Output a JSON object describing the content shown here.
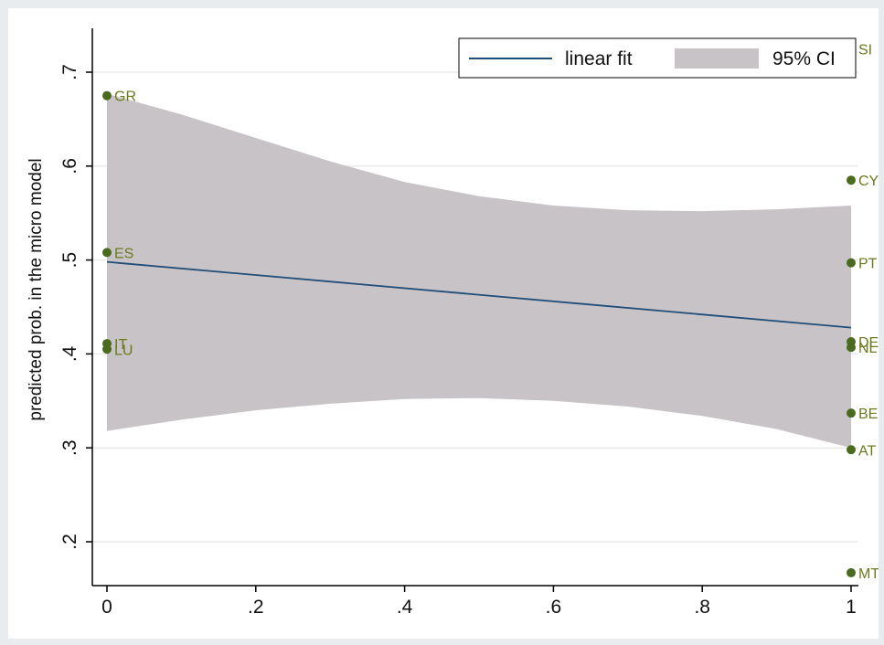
{
  "chart_data": {
    "type": "scatter",
    "title": "",
    "xlabel": "",
    "ylabel": "predicted prob. in the micro model",
    "xlim": [
      0,
      1
    ],
    "ylim": [
      0.2,
      0.7
    ],
    "x_ticks": [
      {
        "value": 0,
        "label": "0"
      },
      {
        "value": 0.2,
        "label": ".2"
      },
      {
        "value": 0.4,
        "label": ".4"
      },
      {
        "value": 0.6,
        "label": ".6"
      },
      {
        "value": 0.8,
        "label": ".8"
      },
      {
        "value": 1,
        "label": "1"
      }
    ],
    "y_ticks": [
      {
        "value": 0.2,
        "label": ".2"
      },
      {
        "value": 0.3,
        "label": ".3"
      },
      {
        "value": 0.4,
        "label": ".4"
      },
      {
        "value": 0.5,
        "label": ".5"
      },
      {
        "value": 0.6,
        "label": ".6"
      },
      {
        "value": 0.7,
        "label": ".7"
      }
    ],
    "grid": "horizontal",
    "points": [
      {
        "label": "GR",
        "x": 0,
        "y": 0.675
      },
      {
        "label": "ES",
        "x": 0,
        "y": 0.508
      },
      {
        "label": "IT",
        "x": 0,
        "y": 0.411
      },
      {
        "label": "LU",
        "x": 0,
        "y": 0.405
      },
      {
        "label": "SI",
        "x": 1,
        "y": 0.725
      },
      {
        "label": "CY",
        "x": 1,
        "y": 0.585
      },
      {
        "label": "PT",
        "x": 1,
        "y": 0.497
      },
      {
        "label": "DE",
        "x": 1,
        "y": 0.413
      },
      {
        "label": "NL",
        "x": 1,
        "y": 0.407
      },
      {
        "label": "BE",
        "x": 1,
        "y": 0.337
      },
      {
        "label": "AT",
        "x": 1,
        "y": 0.298
      },
      {
        "label": "MT",
        "x": 1,
        "y": 0.167
      }
    ],
    "fit_line": {
      "x": [
        0,
        1
      ],
      "y": [
        0.498,
        0.428
      ]
    },
    "confidence_band": {
      "x": [
        0,
        0.1,
        0.2,
        0.3,
        0.4,
        0.5,
        0.6,
        0.7,
        0.8,
        0.9,
        1
      ],
      "lower": [
        0.318,
        0.33,
        0.34,
        0.347,
        0.352,
        0.353,
        0.35,
        0.344,
        0.334,
        0.32,
        0.3
      ],
      "upper": [
        0.677,
        0.655,
        0.63,
        0.605,
        0.583,
        0.568,
        0.558,
        0.553,
        0.552,
        0.554,
        0.558
      ]
    },
    "legend": {
      "position": "top-right",
      "entries": [
        {
          "label": "linear fit",
          "kind": "line"
        },
        {
          "label": "95% CI",
          "kind": "area"
        }
      ]
    },
    "colors": {
      "point": "#4a6b1f",
      "point_label": "#6b7a1e",
      "fit_line": "#1f4e79",
      "ci_fill": "#c7c3c6",
      "grid": "#eaeaea",
      "axis": "#000000"
    }
  }
}
